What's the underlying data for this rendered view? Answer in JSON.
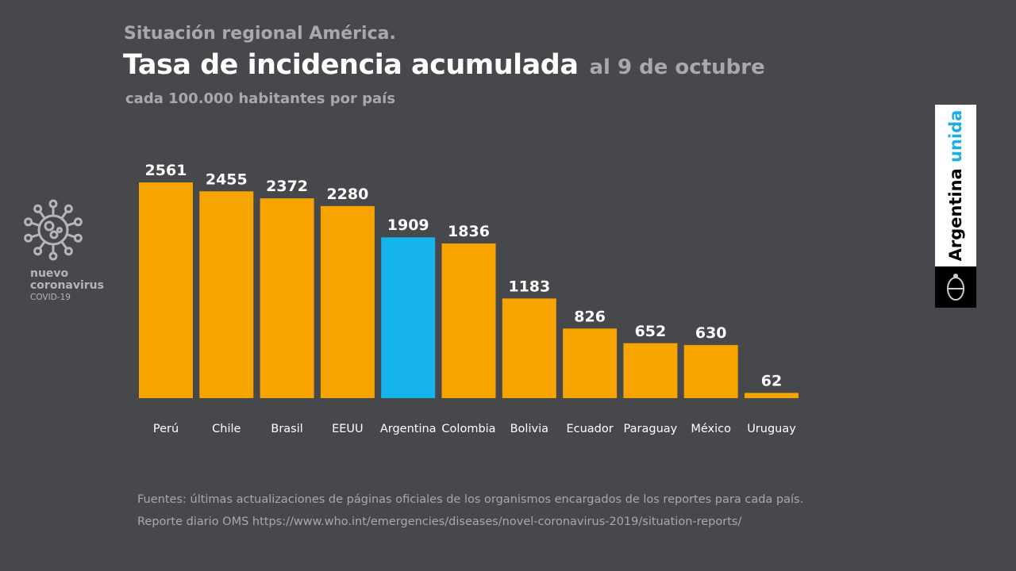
{
  "header": {
    "supertitle": "Situación regional América.",
    "title": "Tasa de incidencia acumulada",
    "date": "al 9 de octubre",
    "subtitle": "cada 100.000 habitantes por país"
  },
  "footer": {
    "source1": "Fuentes: últimas actualizaciones de páginas oficiales de los organismos encargados de los reportes para cada país.",
    "source2": "Reporte diario OMS https://www.who.int/emergencies/diseases/novel-coronavirus-2019/situation-reports/"
  },
  "logo": {
    "line1": "nuevo",
    "line2": "coronavirus",
    "line3": "COVID-19",
    "icon": "virus-icon"
  },
  "brand": {
    "word1": "Argentina",
    "word2": "unida",
    "icon": "coat-of-arms-icon"
  },
  "colors": {
    "bar": "#f7a300",
    "highlight": "#15b4ea",
    "background": "#47484b"
  },
  "chart_data": {
    "type": "bar",
    "title": "Tasa de incidencia acumulada",
    "categories": [
      "Perú",
      "Chile",
      "Brasil",
      "EEUU",
      "Argentina",
      "Colombia",
      "Bolivia",
      "Ecuador",
      "Paraguay",
      "México",
      "Uruguay"
    ],
    "values": [
      2561,
      2455,
      2372,
      2280,
      1909,
      1836,
      1183,
      826,
      652,
      630,
      62
    ],
    "highlight": "Argentina",
    "grid": false
  }
}
